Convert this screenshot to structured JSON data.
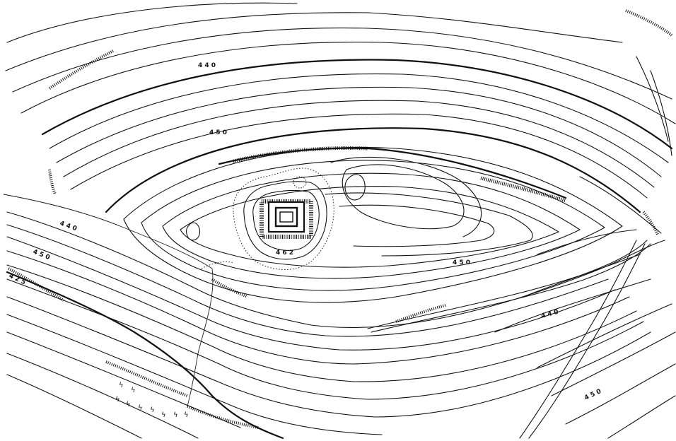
{
  "elevation_labels": [
    "4 4 0",
    "4 5 0",
    "4 4 0",
    "4 5 0",
    "4 2 5",
    "4 6 2",
    "4 5 0",
    "4 4 0",
    "4 5 0"
  ],
  "vegetation_symbol": "ϟ"
}
